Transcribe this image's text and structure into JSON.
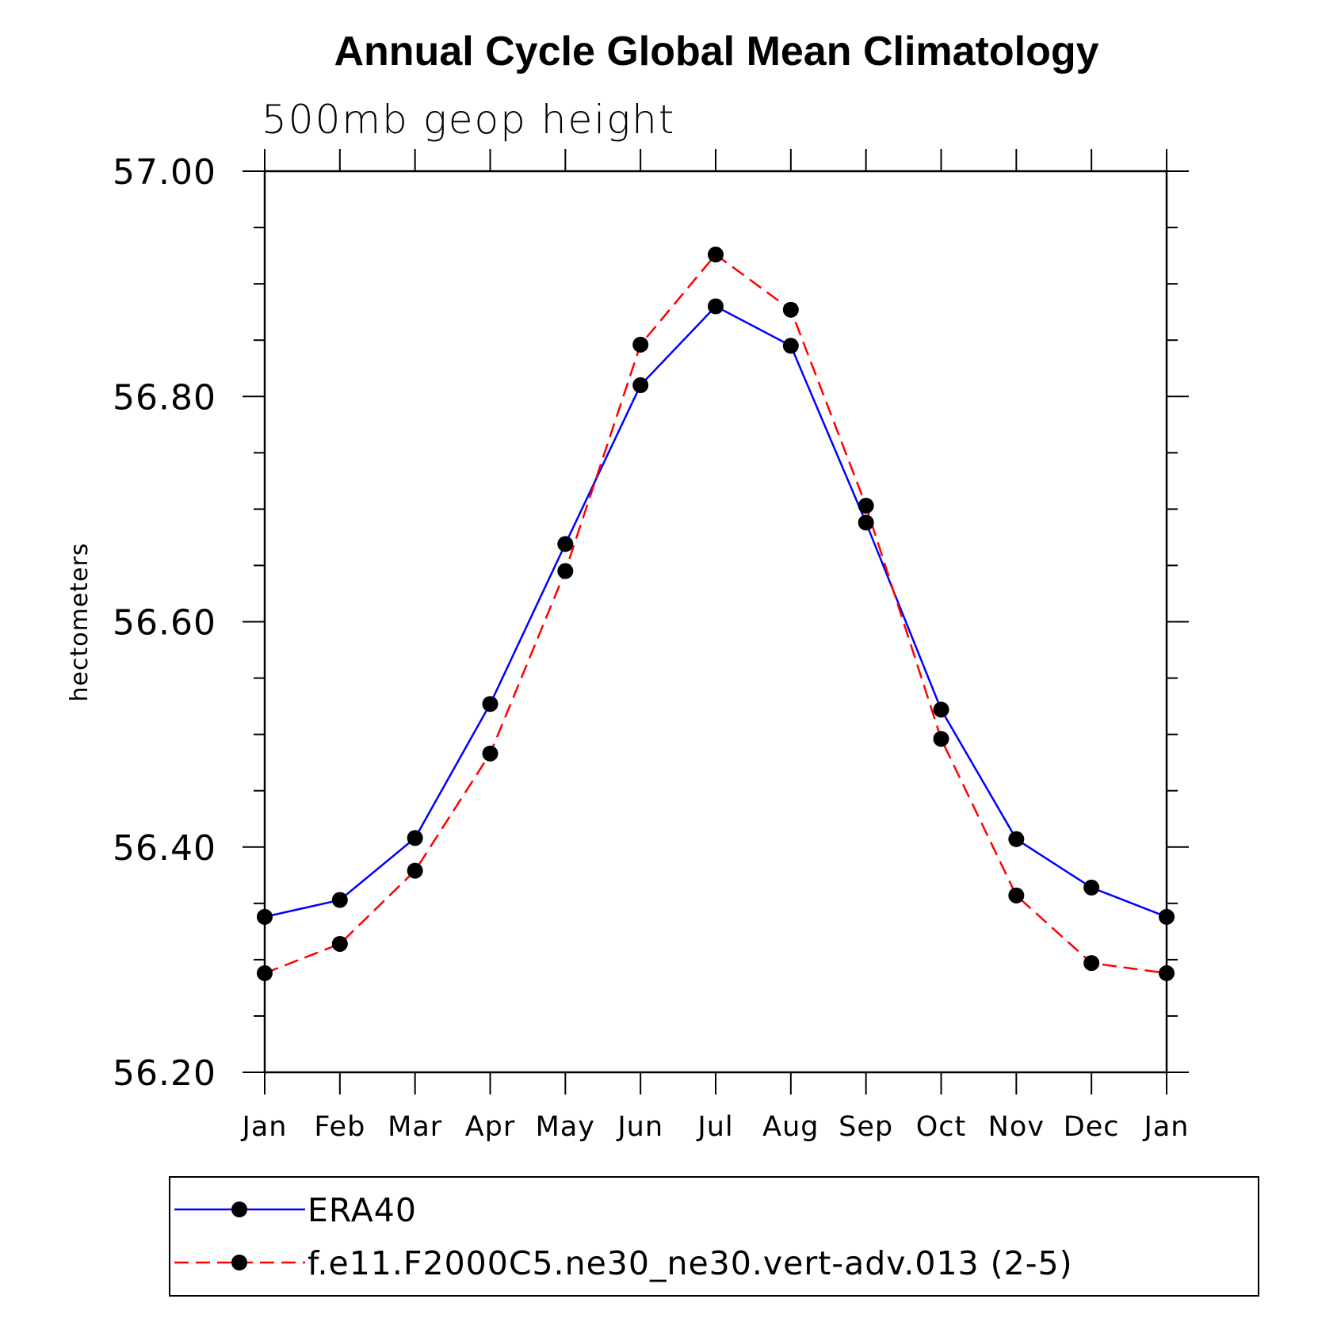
{
  "chart_data": {
    "type": "line",
    "title": "Annual Cycle Global Mean Climatology",
    "subtitle": "500mb geop height",
    "ylabel": "hectometers",
    "xlabel": "",
    "categories": [
      "Jan",
      "Feb",
      "Mar",
      "Apr",
      "May",
      "Jun",
      "Jul",
      "Aug",
      "Sep",
      "Oct",
      "Nov",
      "Dec",
      "Jan"
    ],
    "ylim": [
      56.2,
      57.0
    ],
    "yticks": [
      "56.20",
      "56.40",
      "56.60",
      "56.80",
      "57.00"
    ],
    "grid": false,
    "legend_position": "bottom",
    "series": [
      {
        "name": "ERA40",
        "color": "#0000ff",
        "dash": "solid",
        "values": [
          56.338,
          56.353,
          56.408,
          56.527,
          56.669,
          56.81,
          56.88,
          56.845,
          56.688,
          56.522,
          56.407,
          56.364,
          56.338
        ]
      },
      {
        "name": "f.e11.F2000C5.ne30_ne30.vert-adv.013 (2-5)",
        "color": "#ff0000",
        "dash": "dashed",
        "values": [
          56.288,
          56.314,
          56.379,
          56.483,
          56.645,
          56.846,
          56.926,
          56.877,
          56.703,
          56.496,
          56.357,
          56.297,
          56.288
        ]
      }
    ]
  }
}
